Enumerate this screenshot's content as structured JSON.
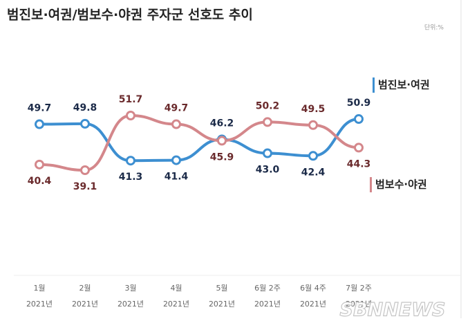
{
  "chart_data": {
    "type": "line",
    "title": "범진보·여권/범보수·야권 주자군 선호도 추이",
    "unit_note": "단위:%",
    "categories": [
      "1월",
      "2월",
      "3월",
      "4월",
      "5월",
      "6월 2주",
      "6월 4주",
      "7월 2주"
    ],
    "category_sublabels": [
      "2021년",
      "2021년",
      "2021년",
      "2021년",
      "2021년",
      "2021년",
      "2021년",
      "2021년"
    ],
    "series": [
      {
        "name": "범진보·여권",
        "color": "#3d8fd1",
        "label_color": "#1b2a48",
        "values": [
          49.7,
          49.8,
          41.3,
          41.4,
          46.2,
          43.0,
          42.4,
          50.9
        ],
        "value_labels": [
          "49.7",
          "49.8",
          "41.3",
          "41.4",
          "46.2",
          "43.0",
          "42.4",
          "50.9"
        ]
      },
      {
        "name": "범보수·야권",
        "color": "#d4878b",
        "label_color": "#6a2a2c",
        "values": [
          40.4,
          39.1,
          51.7,
          49.7,
          45.9,
          50.2,
          49.5,
          44.3
        ],
        "value_labels": [
          "40.4",
          "39.1",
          "51.7",
          "49.7",
          "45.9",
          "50.2",
          "49.5",
          "44.3"
        ]
      }
    ],
    "watermark": "SBNNEWS"
  }
}
